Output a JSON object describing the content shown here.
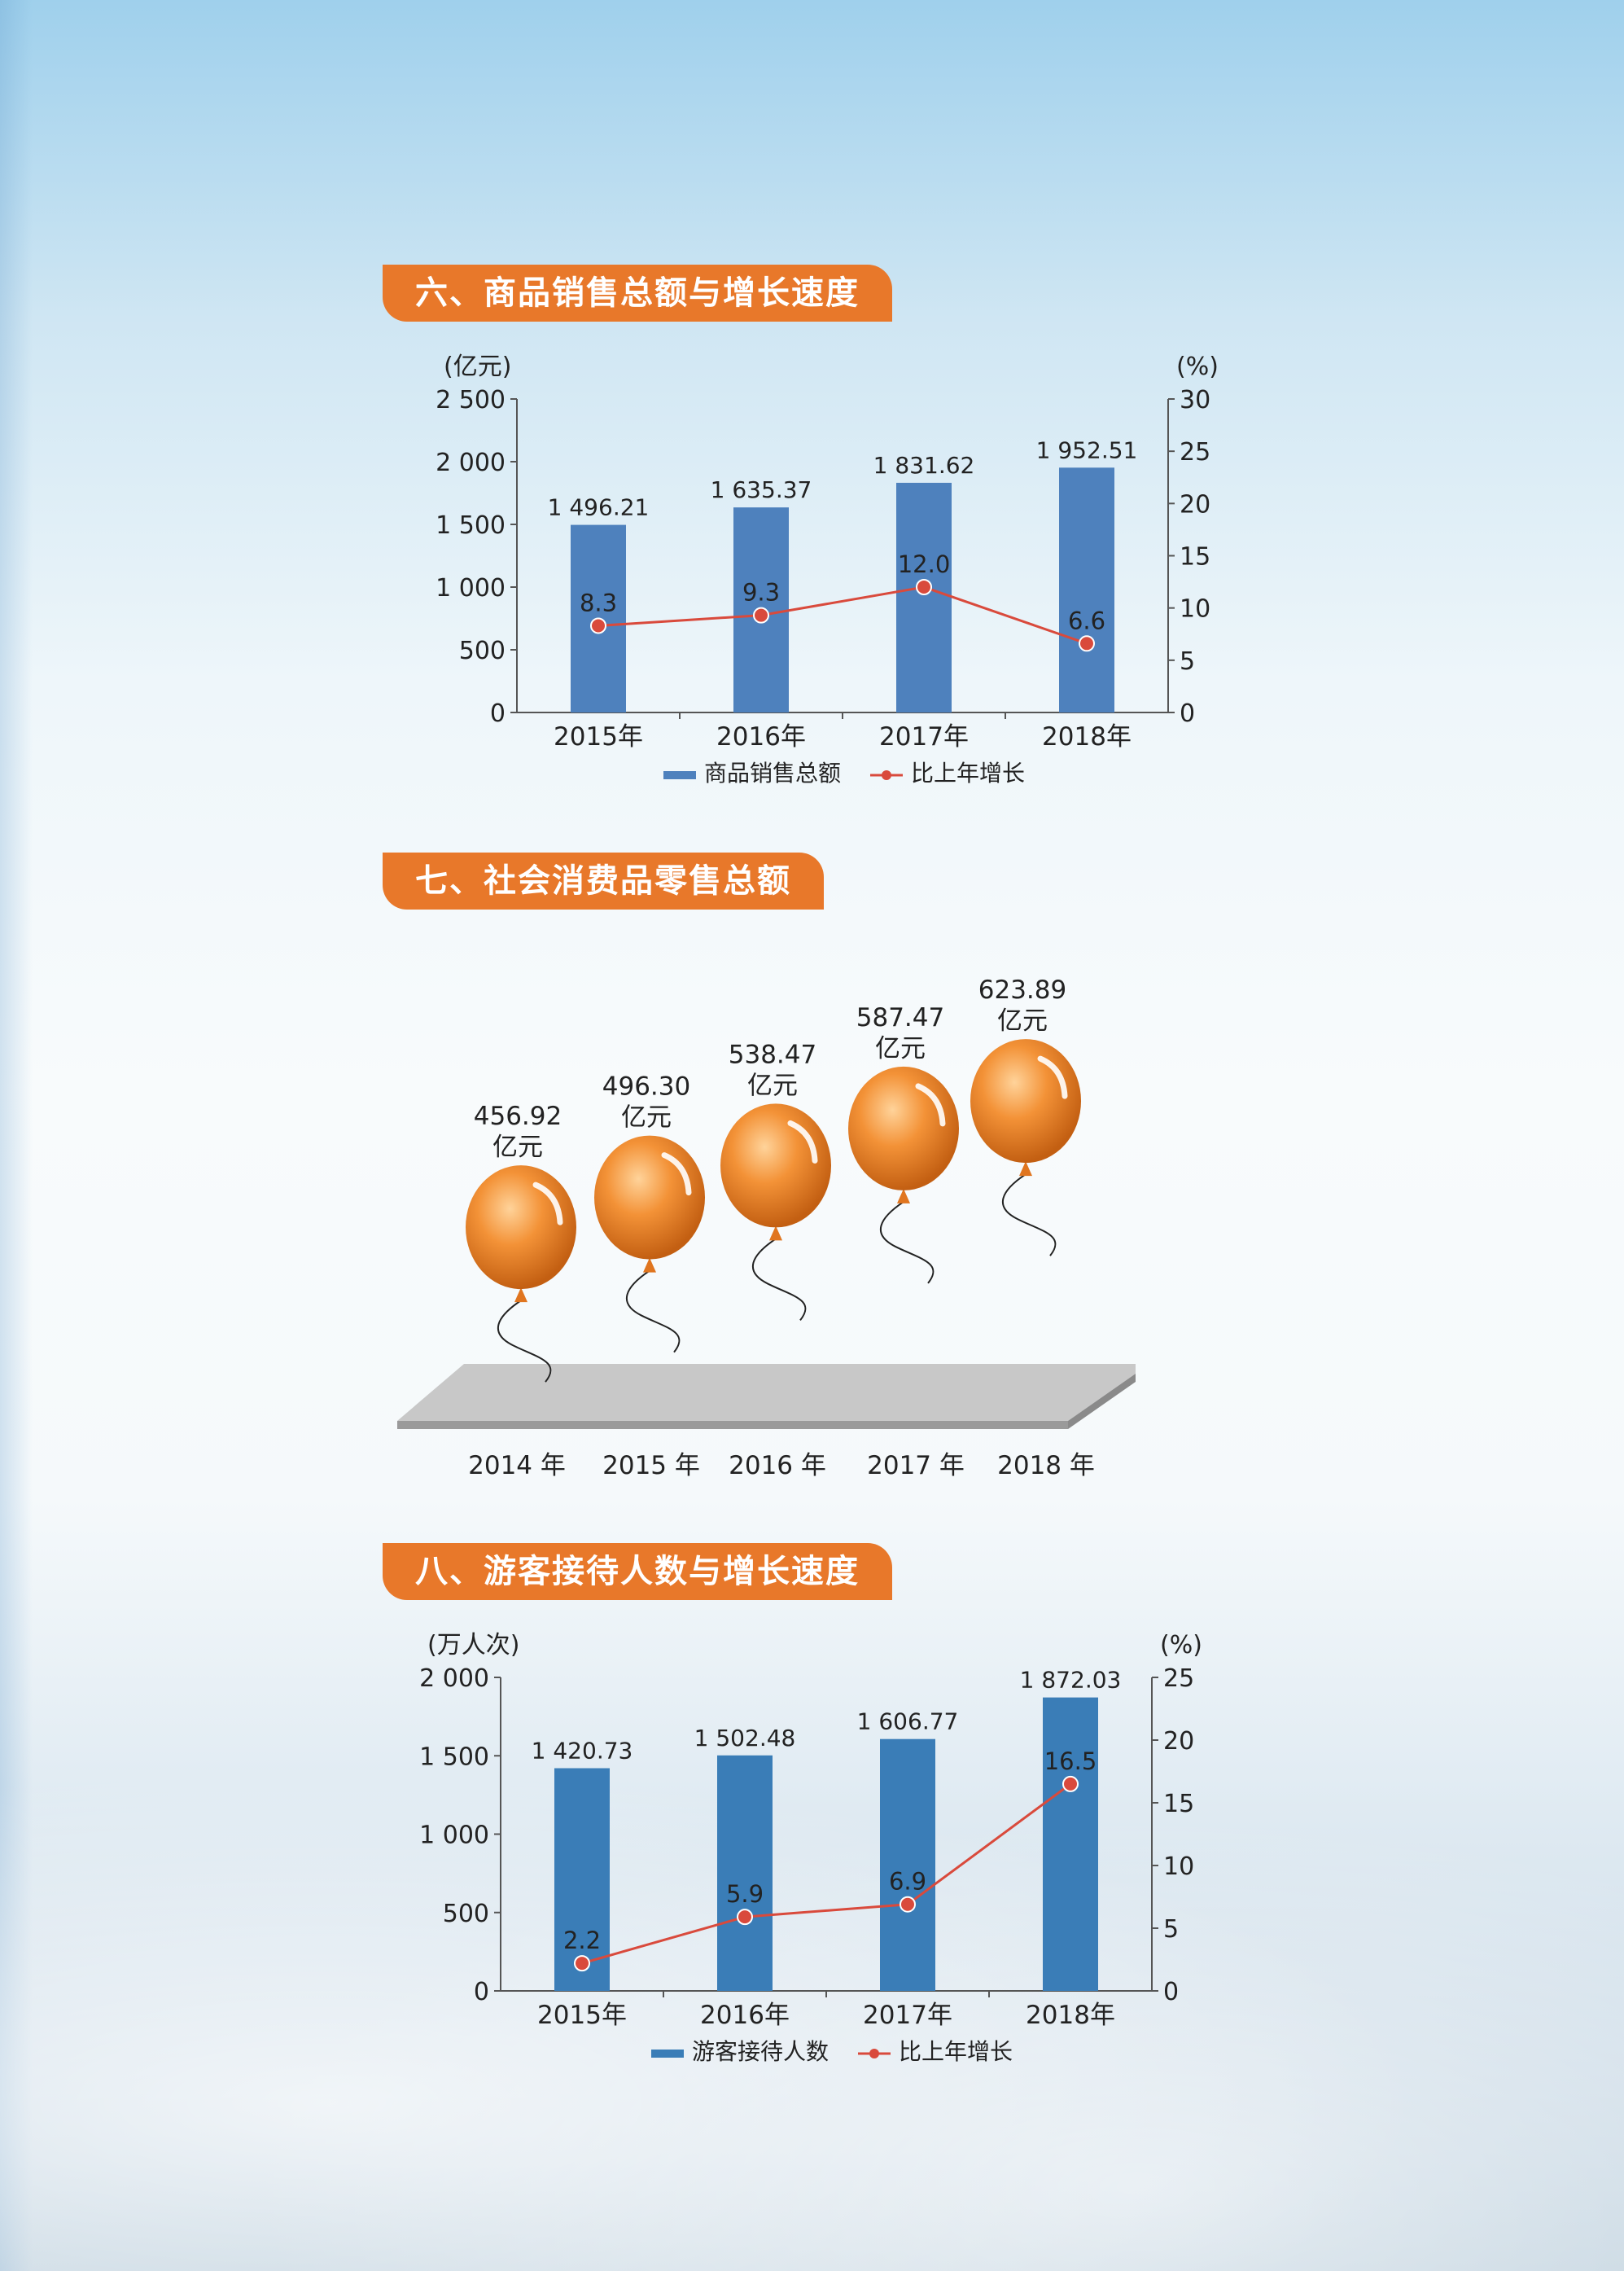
{
  "sections": {
    "s6": {
      "title": "六、商品销售总额与增长速度"
    },
    "s7": {
      "title": "七、社会消费品零售总额"
    },
    "s8": {
      "title": "八、游客接待人数与增长速度"
    }
  },
  "colors": {
    "accent": "#e8782a",
    "bar": "#4e81bd",
    "bar2": "#3a7db7",
    "line": "#d94a3c",
    "balloon": "#f39237"
  },
  "chart_data": [
    {
      "type": "bar",
      "title": "六、商品销售总额与增长速度",
      "categories": [
        "2015年",
        "2016年",
        "2017年",
        "2018年"
      ],
      "y_unit": "(亿元)",
      "y2_unit": "(%)",
      "ylim": [
        0,
        2500
      ],
      "y_ticks": [
        "0",
        "500",
        "1 000",
        "1 500",
        "2 000",
        "2 500"
      ],
      "y2lim": [
        0,
        30
      ],
      "y2_ticks": [
        "0",
        "5",
        "10",
        "15",
        "20",
        "25",
        "30"
      ],
      "series": [
        {
          "name": "商品销售总额",
          "kind": "bar",
          "values": [
            1496.21,
            1635.37,
            1831.62,
            1952.51
          ],
          "labels": [
            "1 496.21",
            "1 635.37",
            "1 831.62",
            "1 952.51"
          ]
        },
        {
          "name": "比上年增长",
          "kind": "line",
          "axis": "right",
          "values": [
            8.3,
            9.3,
            12.0,
            6.6
          ],
          "labels": [
            "8.3",
            "9.3",
            "12.0",
            "6.6"
          ]
        }
      ],
      "legend": "bottom"
    },
    {
      "type": "bar",
      "title": "七、社会消费品零售总额",
      "style": "balloons",
      "categories": [
        "2014 年",
        "2015 年",
        "2016 年",
        "2017 年",
        "2018 年"
      ],
      "values": [
        456.92,
        496.3,
        538.47,
        587.47,
        623.89
      ],
      "labels": [
        "456.92",
        "496.30",
        "538.47",
        "587.47",
        "623.89"
      ],
      "unit": "亿元"
    },
    {
      "type": "bar",
      "title": "八、游客接待人数与增长速度",
      "categories": [
        "2015年",
        "2016年",
        "2017年",
        "2018年"
      ],
      "y_unit": "(万人次)",
      "y2_unit": "(%)",
      "ylim": [
        0,
        2000
      ],
      "y_ticks": [
        "0",
        "500",
        "1 000",
        "1 500",
        "2 000"
      ],
      "y2lim": [
        0,
        25
      ],
      "y2_ticks": [
        "0",
        "5",
        "10",
        "15",
        "20",
        "25"
      ],
      "series": [
        {
          "name": "游客接待人数",
          "kind": "bar",
          "values": [
            1420.73,
            1502.48,
            1606.77,
            1872.03
          ],
          "labels": [
            "1 420.73",
            "1 502.48",
            "1 606.77",
            "1 872.03"
          ]
        },
        {
          "name": "比上年增长",
          "kind": "line",
          "axis": "right",
          "values": [
            2.2,
            5.9,
            6.9,
            16.5
          ],
          "labels": [
            "2.2",
            "5.9",
            "6.9",
            "16.5"
          ]
        }
      ],
      "legend": "bottom"
    }
  ]
}
